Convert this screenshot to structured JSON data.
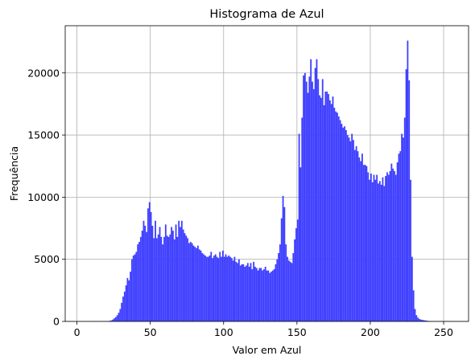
{
  "chart_data": {
    "type": "bar",
    "title": "Histograma de Azul",
    "xlabel": "Valor em Azul",
    "ylabel": "Frequência",
    "xlim": [
      -8,
      267
    ],
    "ylim": [
      0,
      23800
    ],
    "grid": true,
    "bar_color": "#4040ff",
    "x_ticks": [
      0,
      50,
      100,
      150,
      200,
      250
    ],
    "y_ticks": [
      0,
      5000,
      10000,
      15000,
      20000
    ],
    "series": [
      {
        "bin_start": 0,
        "bin_width": 1,
        "values": [
          0,
          0,
          0,
          0,
          0,
          0,
          0,
          0,
          0,
          0,
          10,
          10,
          10,
          10,
          10,
          10,
          10,
          10,
          10,
          10,
          20,
          30,
          50,
          80,
          150,
          250,
          350,
          500,
          700,
          1000,
          1500,
          2000,
          2400,
          2900,
          3500,
          3300,
          4000,
          5000,
          5300,
          5400,
          5600,
          6200,
          6400,
          6800,
          7300,
          8100,
          7700,
          7200,
          9100,
          9600,
          8800,
          7700,
          6700,
          8100,
          6700,
          7000,
          7600,
          6800,
          6200,
          6800,
          7800,
          6900,
          6800,
          7000,
          7600,
          7300,
          6600,
          7800,
          6800,
          8100,
          7600,
          8100,
          7400,
          7100,
          6900,
          6700,
          6300,
          6400,
          6300,
          6100,
          6000,
          5900,
          6100,
          5800,
          5700,
          5500,
          5400,
          5300,
          5200,
          5200,
          5300,
          5600,
          5100,
          5300,
          5400,
          5200,
          5100,
          5600,
          5200,
          5700,
          5200,
          5400,
          5200,
          5300,
          5200,
          5100,
          4900,
          5200,
          4800,
          4700,
          5000,
          4500,
          4600,
          4600,
          4400,
          4500,
          4700,
          4400,
          4700,
          4200,
          4800,
          4400,
          4300,
          4100,
          4300,
          4300,
          4100,
          4200,
          4400,
          4100,
          4100,
          3900,
          4000,
          4100,
          4200,
          4600,
          5000,
          5500,
          6200,
          8300,
          10100,
          9200,
          6200,
          5200,
          4900,
          4800,
          4700,
          5500,
          6600,
          7500,
          8200,
          15100,
          12400,
          16400,
          19800,
          20000,
          19300,
          18400,
          19700,
          21100,
          19300,
          18700,
          20400,
          21100,
          19500,
          18200,
          18000,
          19500,
          17400,
          18500,
          18500,
          18300,
          17800,
          17500,
          18100,
          17200,
          16900,
          16800,
          16500,
          16200,
          15900,
          15600,
          15700,
          15400,
          15000,
          14800,
          14500,
          15100,
          14600,
          13800,
          14100,
          13700,
          13200,
          12900,
          13500,
          12600,
          12600,
          12500,
          12000,
          11400,
          11900,
          11200,
          11800,
          11400,
          11800,
          11100,
          11300,
          11000,
          11600,
          10900,
          11700,
          12000,
          11800,
          12100,
          12700,
          12300,
          12100,
          11800,
          12800,
          13500,
          13700,
          15100,
          14800,
          16400,
          20300,
          22600,
          19400,
          11400,
          5200,
          2500,
          1000,
          500,
          300,
          200,
          150,
          120,
          100,
          80,
          60,
          40,
          30,
          20,
          20,
          10,
          10,
          10,
          10,
          10,
          10,
          10,
          10,
          10,
          10,
          10,
          10,
          10
        ]
      }
    ]
  }
}
